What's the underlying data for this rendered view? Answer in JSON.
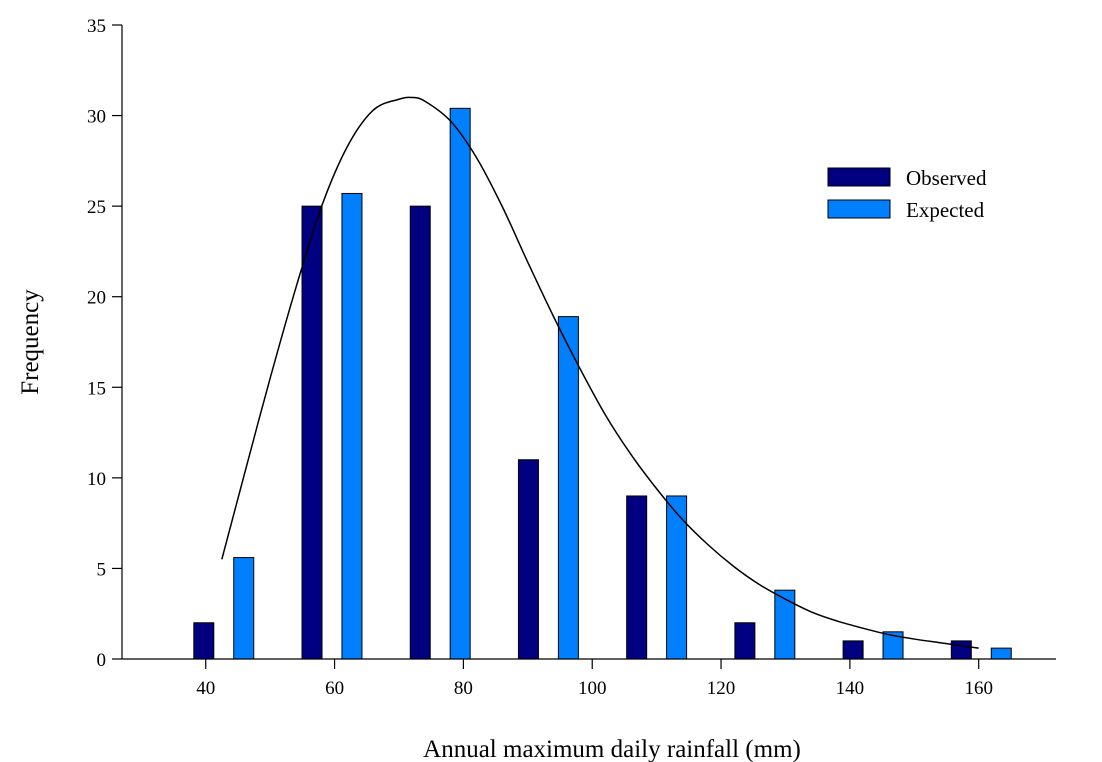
{
  "chart_data": {
    "type": "bar",
    "title": "",
    "xlabel": "Annual maximum daily rainfall (mm)",
    "ylabel": "Frequency",
    "xlim": [
      27,
      172
    ],
    "ylim": [
      0,
      35
    ],
    "xticks": [
      40,
      60,
      80,
      100,
      120,
      140,
      160
    ],
    "yticks": [
      0,
      5,
      10,
      15,
      20,
      25,
      30,
      35
    ],
    "grid": false,
    "legend_position": "top-right",
    "series": [
      {
        "name": "Observed",
        "color": "#000080",
        "x": [
          39.7,
          56.5,
          73.3,
          90.1,
          106.9,
          123.7,
          140.5,
          157.3
        ],
        "values": [
          2,
          25,
          25,
          11,
          9,
          2,
          1,
          1
        ]
      },
      {
        "name": "Expected",
        "color": "#0080ff",
        "x": [
          45.9,
          62.7,
          79.5,
          96.3,
          113.1,
          129.9,
          146.7,
          163.5
        ],
        "values": [
          5.6,
          25.7,
          30.4,
          18.9,
          9.0,
          3.8,
          1.5,
          0.6
        ]
      }
    ],
    "fitted_curve": {
      "x": [
        42.5,
        46,
        50,
        54,
        58,
        62,
        66,
        70,
        72,
        74,
        78,
        82,
        86,
        90,
        94,
        98,
        102,
        106,
        110,
        114,
        118,
        122,
        126,
        130,
        134,
        138,
        142,
        146,
        150,
        154,
        158,
        160
      ],
      "y": [
        5.5,
        10.2,
        15.5,
        20.5,
        25.0,
        28.3,
        30.3,
        30.9,
        31.0,
        30.8,
        29.7,
        27.7,
        25.0,
        21.9,
        18.9,
        16.1,
        13.5,
        11.3,
        9.4,
        7.7,
        6.3,
        5.1,
        4.1,
        3.3,
        2.6,
        2.1,
        1.7,
        1.35,
        1.1,
        0.9,
        0.7,
        0.6
      ]
    }
  }
}
